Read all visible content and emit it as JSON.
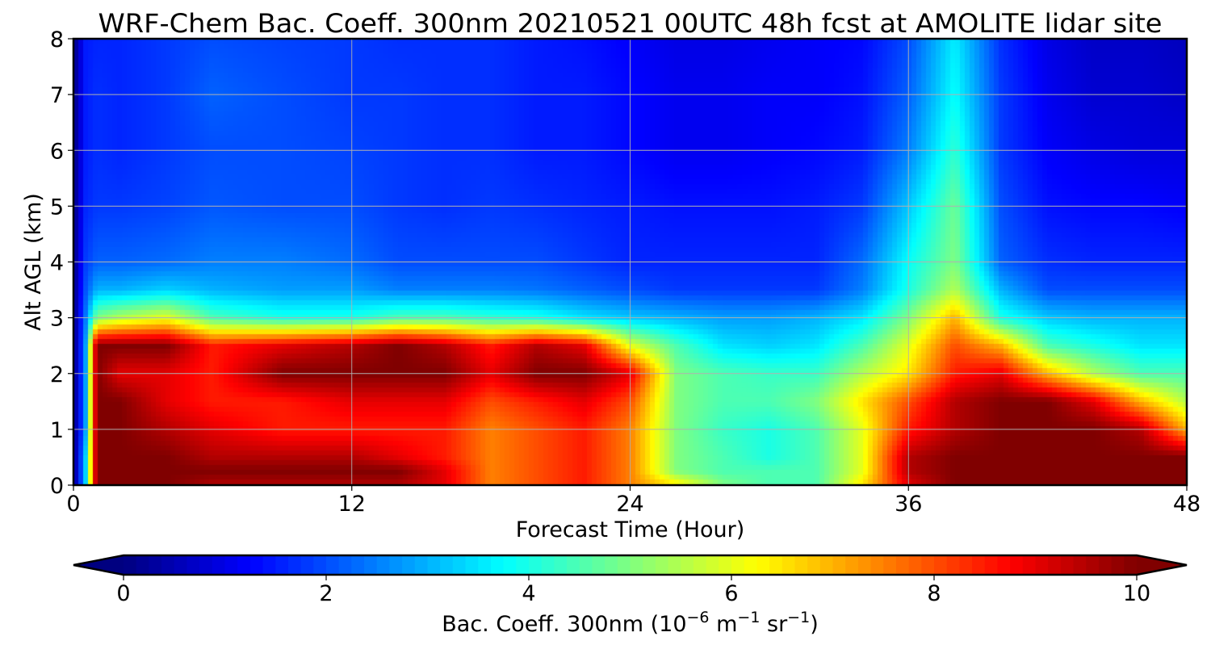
{
  "chart_data": {
    "type": "heatmap",
    "title": "WRF-Chem Bac. Coeff. 300nm  20210521 00UTC 48h fcst at AMOLITE lidar site",
    "xlabel": "Forecast Time (Hour)",
    "ylabel": "Alt AGL (km)",
    "xlim": [
      0,
      48
    ],
    "ylim": [
      0,
      8
    ],
    "xticks": [
      0,
      12,
      24,
      36,
      48
    ],
    "yticks": [
      0,
      1,
      2,
      3,
      4,
      5,
      6,
      7,
      8
    ],
    "grid": true,
    "colormap": "jet",
    "colorbar": {
      "orientation": "horizontal",
      "position": "bottom",
      "range": [
        0,
        10
      ],
      "ticks": [
        0,
        2,
        4,
        6,
        8,
        10
      ],
      "extend": "both",
      "label_main": "Bac. Coeff. 300nm",
      "label_unit_prefix": "(10",
      "label_unit_exp1": "−6",
      "label_unit_mid1": " m",
      "label_unit_exp2": "−1",
      "label_unit_mid2": " sr",
      "label_unit_exp3": "−1",
      "label_unit_suffix": ")"
    },
    "x": [
      0,
      0.5,
      1,
      2,
      4,
      6,
      9,
      12,
      14,
      16,
      18,
      20,
      22,
      24,
      26,
      28,
      30,
      32,
      34,
      36,
      38,
      40,
      42,
      44,
      46,
      48
    ],
    "y": [
      0,
      0.25,
      0.5,
      1,
      1.5,
      2,
      2.5,
      3,
      3.5,
      4,
      5,
      6,
      7,
      8
    ],
    "z": [
      [
        0,
        3,
        10,
        10,
        10,
        9.5,
        9.5,
        9.5,
        9.5,
        9,
        7.5,
        8,
        8.5,
        7.5,
        6.5,
        5,
        4.5,
        4.5,
        6.5,
        9,
        10,
        10,
        10,
        10,
        10,
        10
      ],
      [
        0,
        3,
        10,
        10,
        10,
        10,
        10,
        10,
        10,
        9,
        7.5,
        8,
        8.5,
        7.5,
        5,
        4.5,
        4.5,
        4.5,
        6,
        9.5,
        10,
        10,
        10,
        10,
        10,
        10
      ],
      [
        0,
        3,
        10,
        10,
        10,
        9.5,
        9.5,
        9.5,
        9,
        8.5,
        7.5,
        8,
        8.5,
        7.5,
        5,
        4.5,
        4,
        4.5,
        6,
        9.5,
        10,
        10,
        10,
        10,
        10,
        10
      ],
      [
        0,
        2.5,
        10,
        10,
        9.5,
        9,
        8.5,
        8.5,
        8.5,
        8.5,
        7.5,
        8,
        8.5,
        7.5,
        5,
        4.3,
        4,
        4.5,
        6,
        8.5,
        9.5,
        10,
        10,
        10,
        9.5,
        7
      ],
      [
        0,
        2.5,
        10,
        10,
        9,
        8.5,
        8.5,
        9,
        9,
        9,
        8,
        8.5,
        9,
        8,
        5,
        4.5,
        4.5,
        5,
        6.5,
        8,
        9.5,
        10,
        10,
        9,
        7,
        5.5
      ],
      [
        0,
        2.5,
        10,
        9,
        9,
        8.5,
        10,
        10,
        10,
        10,
        9,
        10,
        10,
        9,
        5,
        4.5,
        4.3,
        4.3,
        5.5,
        6.5,
        8.5,
        9,
        7,
        5.5,
        4.5,
        4.5
      ],
      [
        0,
        2.5,
        10,
        10,
        10,
        8.5,
        9,
        9.5,
        10,
        9.5,
        8.5,
        9.5,
        9,
        6,
        4.5,
        3.5,
        3.3,
        3.5,
        4.5,
        6,
        8,
        7,
        4.5,
        4,
        3.5,
        3.5
      ],
      [
        0,
        2.3,
        5,
        5.5,
        6,
        4.5,
        4,
        4,
        4.5,
        4.5,
        4.2,
        4,
        3.5,
        3.2,
        3,
        2.8,
        2.8,
        3,
        3.5,
        5,
        7,
        4,
        3.2,
        3,
        3,
        3
      ],
      [
        0,
        2,
        3,
        3,
        3.3,
        3,
        2.8,
        2.8,
        2.5,
        2.5,
        2.5,
        2.4,
        2.2,
        2,
        1.8,
        1.8,
        1.8,
        1.8,
        2.5,
        4,
        5.5,
        3,
        2,
        2,
        2,
        2
      ],
      [
        0,
        1.8,
        2.2,
        2.2,
        2.3,
        2.5,
        2.5,
        2.3,
        2,
        2,
        2,
        2,
        1.8,
        1.6,
        1.6,
        1.6,
        1.6,
        1.6,
        2.3,
        3.8,
        5,
        2.2,
        1.7,
        1.6,
        1.6,
        1.6
      ],
      [
        0,
        1.6,
        1.8,
        1.8,
        1.9,
        2.1,
        2,
        2,
        1.8,
        1.7,
        1.8,
        1.7,
        1.6,
        1.5,
        1.4,
        1.4,
        1.4,
        1.5,
        1.8,
        3.2,
        4.8,
        2,
        1.4,
        1.3,
        1.3,
        1.2
      ],
      [
        0,
        1.5,
        1.7,
        1.6,
        1.8,
        2,
        2,
        1.9,
        1.8,
        1.7,
        1.7,
        1.5,
        1.5,
        1.3,
        1.1,
        1.1,
        1.2,
        1.3,
        1.5,
        2.5,
        4.2,
        1.8,
        1.2,
        1,
        0.9,
        0.9
      ],
      [
        0,
        1.5,
        1.7,
        1.6,
        1.8,
        2.2,
        2,
        1.8,
        1.8,
        1.7,
        1.7,
        1.5,
        1.5,
        1.3,
        1.1,
        1.1,
        1.2,
        1.2,
        1.4,
        2.2,
        3.8,
        1.8,
        1.1,
        0.8,
        0.8,
        0.7
      ],
      [
        0,
        1.5,
        1.6,
        1.6,
        1.8,
        2,
        1.9,
        1.8,
        1.7,
        1.7,
        1.7,
        1.5,
        1.4,
        1.2,
        1,
        1,
        1.1,
        1.2,
        1.3,
        2,
        3.6,
        1.7,
        1,
        0.7,
        0.7,
        0.6
      ]
    ]
  }
}
